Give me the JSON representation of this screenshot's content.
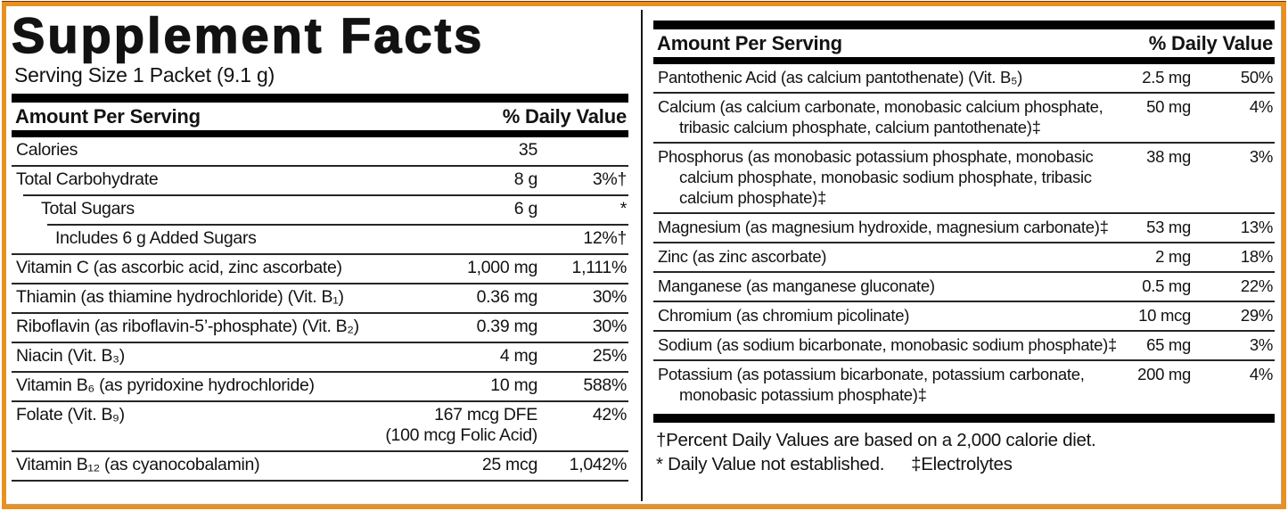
{
  "colors": {
    "border_orange": "#E8911F",
    "border_shadow": "#6E3408",
    "bar_black": "#000000",
    "text": "#121212",
    "rule": "#262626",
    "background": "#FFFFFF"
  },
  "header": {
    "title": "Supplement Facts",
    "serving_size": "Serving Size 1 Packet (9.1 g)"
  },
  "left_table": {
    "col_amount": "Amount Per Serving",
    "col_daily_value": "% Daily Value",
    "rows": [
      {
        "name": "Calories",
        "amount": "35",
        "dv": "",
        "indent": 0
      },
      {
        "name": "Total Carbohydrate",
        "amount": "8 g",
        "dv": "3%†",
        "indent": 0
      },
      {
        "name": "Total Sugars",
        "amount": "6 g",
        "dv": "*",
        "indent": 1
      },
      {
        "name": "Includes 6 g Added Sugars",
        "amount": "",
        "dv": "12%†",
        "indent": 2
      },
      {
        "name": "Vitamin C (as ascorbic acid, zinc ascorbate)",
        "amount": "1,000 mg",
        "dv": "1,111%",
        "indent": 0
      },
      {
        "name": "Thiamin (as thiamine hydrochloride) (Vit. B₁)",
        "amount": "0.36 mg",
        "dv": "30%",
        "indent": 0
      },
      {
        "name": "Riboflavin (as riboflavin-5’-phosphate) (Vit. B₂)",
        "amount": "0.39 mg",
        "dv": "30%",
        "indent": 0
      },
      {
        "name": "Niacin (Vit. B₃)",
        "amount": "4 mg",
        "dv": "25%",
        "indent": 0
      },
      {
        "name": "Vitamin B₆ (as pyridoxine hydrochloride)",
        "amount": "10 mg",
        "dv": "588%",
        "indent": 0
      },
      {
        "name": "Folate (Vit. B₉)",
        "amount": "167 mcg DFE",
        "amount2": "(100 mcg Folic Acid)",
        "dv": "42%",
        "indent": 0
      },
      {
        "name": "Vitamin B₁₂ (as cyanocobalamin)",
        "amount": "25 mcg",
        "dv": "1,042%",
        "indent": 0
      }
    ]
  },
  "right_table": {
    "col_amount": "Amount Per Serving",
    "col_daily_value": "% Daily Value",
    "rows": [
      {
        "name": "Pantothenic Acid (as calcium pantothenate) (Vit. B₅)",
        "amount": "2.5 mg",
        "dv": "50%",
        "indent": 0
      },
      {
        "name": "Calcium (as calcium carbonate, monobasic calcium phosphate, tribasic calcium phosphate, calcium pantothenate)‡",
        "amount": "50 mg",
        "dv": "4%",
        "indent": 0
      },
      {
        "name": "Phosphorus (as monobasic potassium phosphate, monobasic calcium phosphate, monobasic sodium phosphate, tribasic calcium phosphate)‡",
        "amount": "38 mg",
        "dv": "3%",
        "indent": 0
      },
      {
        "name": "Magnesium (as magnesium hydroxide, magnesium carbonate)‡",
        "amount": "53 mg",
        "dv": "13%",
        "indent": 0
      },
      {
        "name": "Zinc (as zinc ascorbate)",
        "amount": "2 mg",
        "dv": "18%",
        "indent": 0
      },
      {
        "name": "Manganese (as manganese gluconate)",
        "amount": "0.5 mg",
        "dv": "22%",
        "indent": 0
      },
      {
        "name": "Chromium (as chromium picolinate)",
        "amount": "10 mcg",
        "dv": "29%",
        "indent": 0
      },
      {
        "name": "Sodium (as sodium bicarbonate, monobasic sodium phosphate)‡",
        "amount": "65 mg",
        "dv": "3%",
        "indent": 0
      },
      {
        "name": "Potassium (as potassium bicarbonate, potassium carbonate, monobasic potassium phosphate)‡",
        "amount": "200 mg",
        "dv": "4%",
        "indent": 0
      }
    ]
  },
  "footnotes": {
    "percent_daily_values": "†Percent Daily Values are based on a 2,000 calorie diet.",
    "not_established": "* Daily Value not established.",
    "electrolytes": "‡Electrolytes"
  }
}
